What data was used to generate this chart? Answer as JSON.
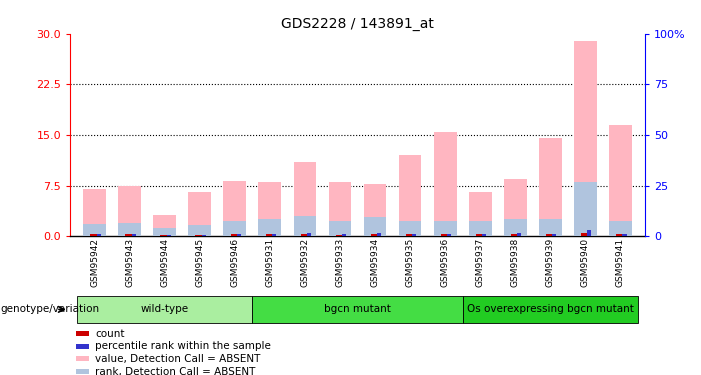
{
  "title": "GDS2228 / 143891_at",
  "samples": [
    "GSM95942",
    "GSM95943",
    "GSM95944",
    "GSM95945",
    "GSM95946",
    "GSM95931",
    "GSM95932",
    "GSM95933",
    "GSM95934",
    "GSM95935",
    "GSM95936",
    "GSM95937",
    "GSM95938",
    "GSM95939",
    "GSM95940",
    "GSM95941"
  ],
  "pink_values": [
    7.0,
    7.5,
    3.2,
    6.5,
    8.2,
    8.0,
    11.0,
    8.0,
    7.8,
    12.0,
    15.5,
    6.5,
    8.5,
    14.5,
    29.0,
    16.5
  ],
  "blue_values": [
    1.8,
    2.0,
    1.2,
    1.6,
    2.2,
    2.5,
    3.0,
    2.2,
    2.8,
    2.2,
    2.2,
    2.2,
    2.5,
    2.5,
    8.0,
    2.2
  ],
  "red_values": [
    0.35,
    0.35,
    0.25,
    0.25,
    0.35,
    0.35,
    0.35,
    0.25,
    0.35,
    0.35,
    0.35,
    0.35,
    0.35,
    0.35,
    0.45,
    0.35
  ],
  "dark_blue_values": [
    0.35,
    0.35,
    0.2,
    0.25,
    0.35,
    0.35,
    0.45,
    0.35,
    0.45,
    0.35,
    0.35,
    0.35,
    0.45,
    0.35,
    0.9,
    0.35
  ],
  "groups": [
    {
      "label": "wild-type",
      "start": 0,
      "end": 5,
      "color": "#AAEEA0"
    },
    {
      "label": "bgcn mutant",
      "start": 5,
      "end": 11,
      "color": "#44DD44"
    },
    {
      "label": "Os overexpressing bgcn mutant",
      "start": 11,
      "end": 16,
      "color": "#22CC22"
    }
  ],
  "ylim_left": [
    0,
    30
  ],
  "ylim_right": [
    0,
    100
  ],
  "yticks_left": [
    0,
    7.5,
    15,
    22.5,
    30
  ],
  "yticks_right": [
    0,
    25,
    50,
    75,
    100
  ],
  "ytick_labels_right": [
    "0",
    "25",
    "50",
    "75",
    "100%"
  ],
  "grid_values": [
    7.5,
    15,
    22.5
  ],
  "bar_width": 0.65,
  "pink_color": "#FFB6C1",
  "light_blue_color": "#B0C4DE",
  "red_color": "#CC0000",
  "dark_blue_color": "#3333CC",
  "sample_bg_color": "#D8D8D8",
  "genotype_label": "genotype/variation",
  "legend_items": [
    {
      "color": "#CC0000",
      "label": "count"
    },
    {
      "color": "#3333CC",
      "label": "percentile rank within the sample"
    },
    {
      "color": "#FFB6C1",
      "label": "value, Detection Call = ABSENT"
    },
    {
      "color": "#B0C4DE",
      "label": "rank, Detection Call = ABSENT"
    }
  ]
}
